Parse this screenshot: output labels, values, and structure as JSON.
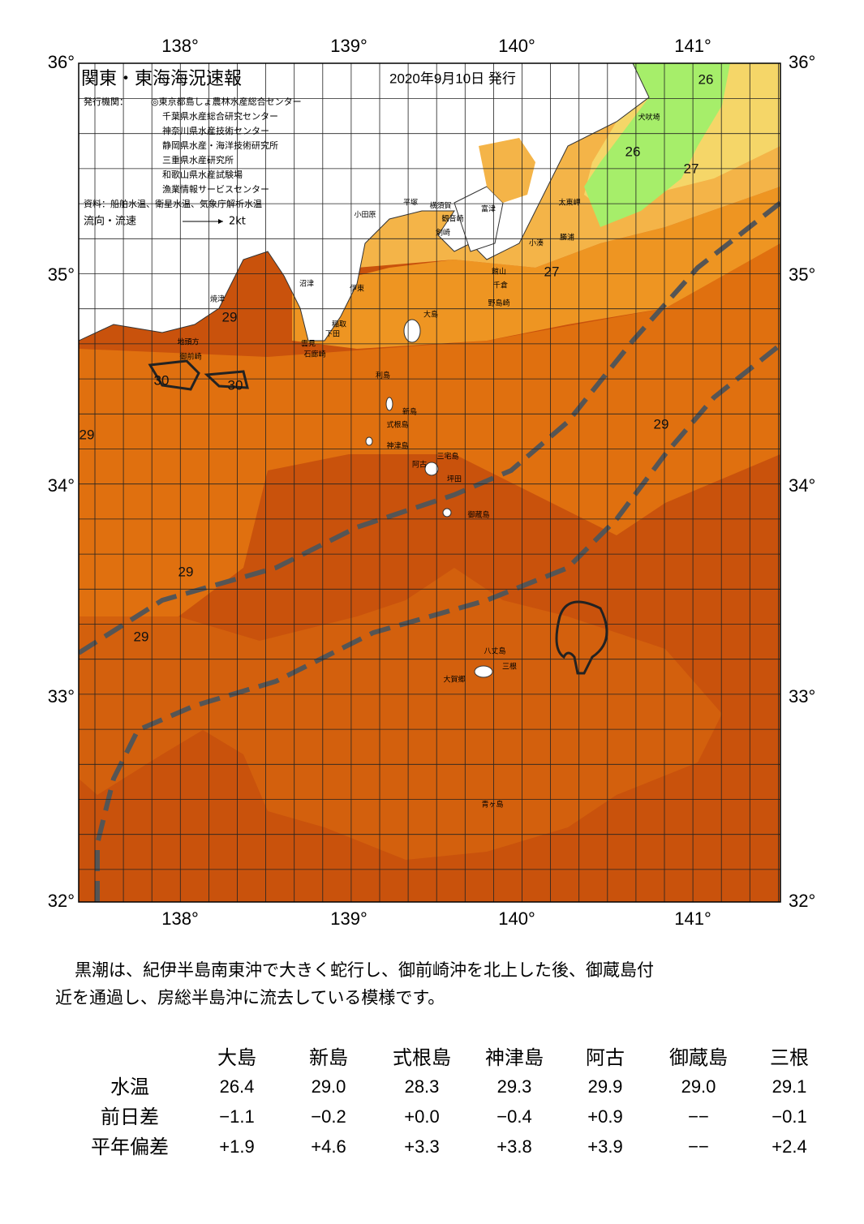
{
  "header": {
    "title": "関東・東海海況速報",
    "date": "2020年9月10日 発行",
    "issuer_label": "発行機関：",
    "issuers": [
      "◎東京都島しょ農林水産総合センター",
      "千葉県水産総合研究センター",
      "神奈川県水産技術センター",
      "静岡県水産・海洋技術研究所",
      "三重県水産研究所",
      "和歌山県水産試験場",
      "漁業情報サービスセンター"
    ],
    "source": "資料：船舶水温、衛星水温、気象庁解析水温",
    "flow_label": "流向・流速",
    "flow_scale": "2kt"
  },
  "map": {
    "lon_labels": [
      "138°",
      "139°",
      "140°",
      "141°"
    ],
    "lat_labels": [
      "36°",
      "35°",
      "34°",
      "33°",
      "32°"
    ],
    "temperature_labels": [
      "26",
      "26",
      "27",
      "27",
      "29",
      "30",
      "30",
      "29",
      "29",
      "29",
      "29"
    ],
    "places": [
      "焼津",
      "地頭方",
      "御前崎",
      "沼津",
      "伊東",
      "稲取",
      "下田",
      "雲見",
      "石廊崎",
      "小田原",
      "平塚",
      "横須賀",
      "観音崎",
      "剣崎",
      "富津",
      "大島",
      "利島",
      "新島",
      "式根島",
      "神津島",
      "三宅島",
      "阿古",
      "坪田",
      "御蔵島",
      "八丈島",
      "三根",
      "大賀郷",
      "青ヶ島",
      "犬吠埼",
      "太東岬",
      "勝浦",
      "小湊",
      "館山",
      "千倉",
      "野島崎"
    ]
  },
  "description": [
    "黒潮は、紀伊半島南東沖で大きく蛇行し、御前崎沖を北上した後、御蔵島付",
    "近を通過し、房総半島沖に流去している模様です。"
  ],
  "table": {
    "columns": [
      "大島",
      "新島",
      "式根島",
      "神津島",
      "阿古",
      "御蔵島",
      "三根"
    ],
    "rows": [
      {
        "label": "水温",
        "cells": [
          "26.4",
          "29.0",
          "28.3",
          "29.3",
          "29.9",
          "29.0",
          "29.1"
        ]
      },
      {
        "label": "前日差",
        "cells": [
          "−1.1",
          "−0.2",
          "+0.0",
          "−0.4",
          "+0.9",
          "−−",
          "−0.1"
        ]
      },
      {
        "label": "平年偏差",
        "cells": [
          "+1.9",
          "+4.6",
          "+3.3",
          "+3.8",
          "+3.9",
          "−−",
          "+2.4"
        ]
      }
    ]
  }
}
